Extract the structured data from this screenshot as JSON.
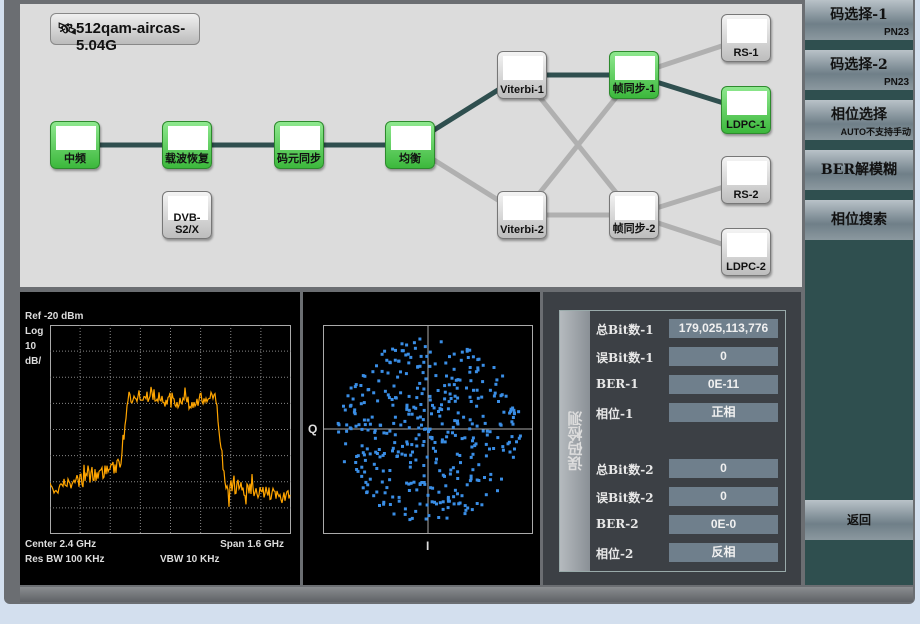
{
  "title": "512qam-aircas-5.04G",
  "nodes": {
    "if": "中频",
    "carrier": "载波恢复",
    "symbol": "码元同步",
    "eq": "均衡",
    "dvb": "DVB-S2/X",
    "vit1": "Viterbi-1",
    "vit2": "Viterbi-2",
    "fs1": "帧同步-1",
    "fs2": "帧同步-2",
    "rs1": "RS-1",
    "ldpc1": "LDPC-1",
    "rs2": "RS-2",
    "ldpc2": "LDPC-2"
  },
  "sidebar": {
    "code1": {
      "label": "码选择-1",
      "value": "PN23"
    },
    "code2": {
      "label": "码选择-2",
      "value": "PN23"
    },
    "phase": {
      "label": "相位选择",
      "value": "AUTO不支持手动"
    },
    "ber_amb": "BER解模糊",
    "phase_search": "相位搜索",
    "back": "返回"
  },
  "spectrum": {
    "ref": "Ref  -20 dBm",
    "scale1": "Log",
    "scale2": "10",
    "scale3": "dB/",
    "center": "Center 2.4 GHz",
    "span": "Span 1.6 GHz",
    "rbw": "Res BW 100 KHz",
    "vbw": "VBW 10 KHz",
    "trace_color": "#ffa500"
  },
  "constellation": {
    "q": "Q",
    "i": "I",
    "point_color": "#3a8ee6"
  },
  "ber": {
    "section": "误码检测",
    "rows": [
      {
        "k": "总Bit数-1",
        "v": "179,025,113,776"
      },
      {
        "k": "误Bit数-1",
        "v": "0"
      },
      {
        "k": "BER-1",
        "v": "0E-11"
      },
      {
        "k": "相位-1",
        "v": "正相"
      },
      {
        "k": "总Bit数-2",
        "v": "0"
      },
      {
        "k": "误Bit数-2",
        "v": "0"
      },
      {
        "k": "BER-2",
        "v": "0E-0"
      },
      {
        "k": "相位-2",
        "v": "反相"
      }
    ]
  },
  "colors": {
    "active_node": "#3cb83c",
    "active_link": "#2f4f4f",
    "inactive_link": "#b0b0b0",
    "sidebar": "#2f4f4f"
  }
}
